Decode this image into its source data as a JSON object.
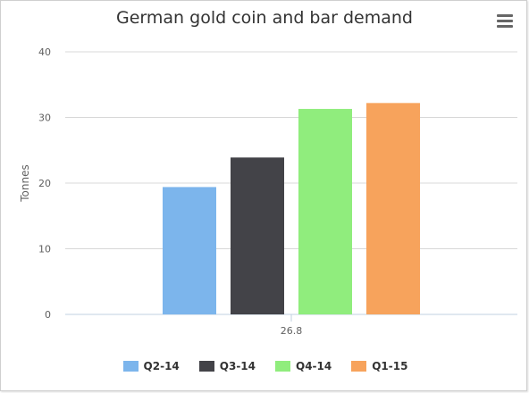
{
  "chart_data": {
    "type": "bar",
    "title": "German gold coin and bar demand",
    "xlabel": "",
    "ylabel": "Tonnes",
    "categories": [
      "26.8"
    ],
    "ylim": [
      0,
      40
    ],
    "yticks": [
      0,
      10,
      20,
      30,
      40
    ],
    "grid": true,
    "legend_position": "bottom",
    "series": [
      {
        "name": "Q2-14",
        "values": [
          19.4
        ],
        "color": "#7cb5ec"
      },
      {
        "name": "Q3-14",
        "values": [
          23.9
        ],
        "color": "#434348"
      },
      {
        "name": "Q4-14",
        "values": [
          31.3
        ],
        "color": "#90ed7d"
      },
      {
        "name": "Q1-15",
        "values": [
          32.2
        ],
        "color": "#f7a35c"
      }
    ]
  },
  "menu": {
    "icon": "hamburger-menu-icon"
  }
}
